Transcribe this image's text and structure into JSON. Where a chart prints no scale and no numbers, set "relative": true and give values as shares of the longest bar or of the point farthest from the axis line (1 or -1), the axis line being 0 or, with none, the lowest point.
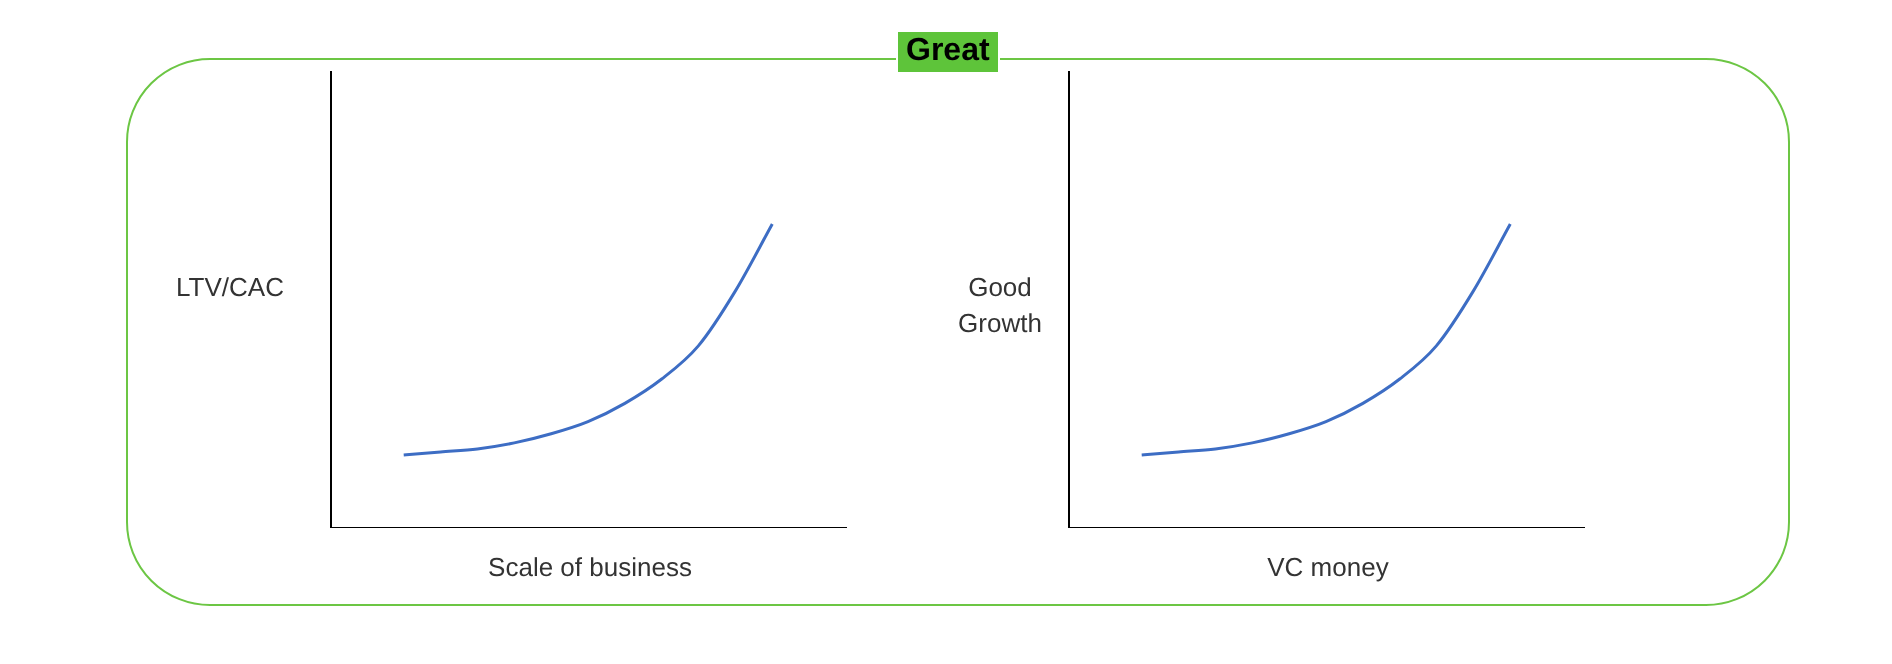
{
  "chart_data": [
    {
      "type": "other",
      "title": "Great"
    },
    {
      "type": "line",
      "ylabel": "LTV/CAC",
      "xlabel": "Scale of business",
      "relative": true,
      "marker": "none",
      "categories": [
        null,
        null,
        null,
        null,
        null,
        null,
        null,
        null,
        null,
        null,
        null,
        null,
        null,
        null,
        null
      ],
      "series": [
        {
          "color": "#3d6dc4",
          "values": [
            null,
            null,
            0.24,
            0.25,
            0.26,
            0.28,
            0.31,
            0.35,
            0.41,
            0.49,
            0.6,
            0.78,
            1,
            null,
            null
          ]
        }
      ]
    },
    {
      "type": "line",
      "ylabel": "Good Growth",
      "xlabel": "VC money",
      "relative": true,
      "marker": "none",
      "categories": [
        null,
        null,
        null,
        null,
        null,
        null,
        null,
        null,
        null,
        null,
        null,
        null,
        null,
        null,
        null
      ],
      "series": [
        {
          "color": "#3d6dc4",
          "values": [
            null,
            null,
            0.24,
            0.25,
            0.26,
            0.28,
            0.31,
            0.35,
            0.41,
            0.49,
            0.6,
            0.78,
            1,
            null,
            null
          ]
        }
      ]
    }
  ]
}
